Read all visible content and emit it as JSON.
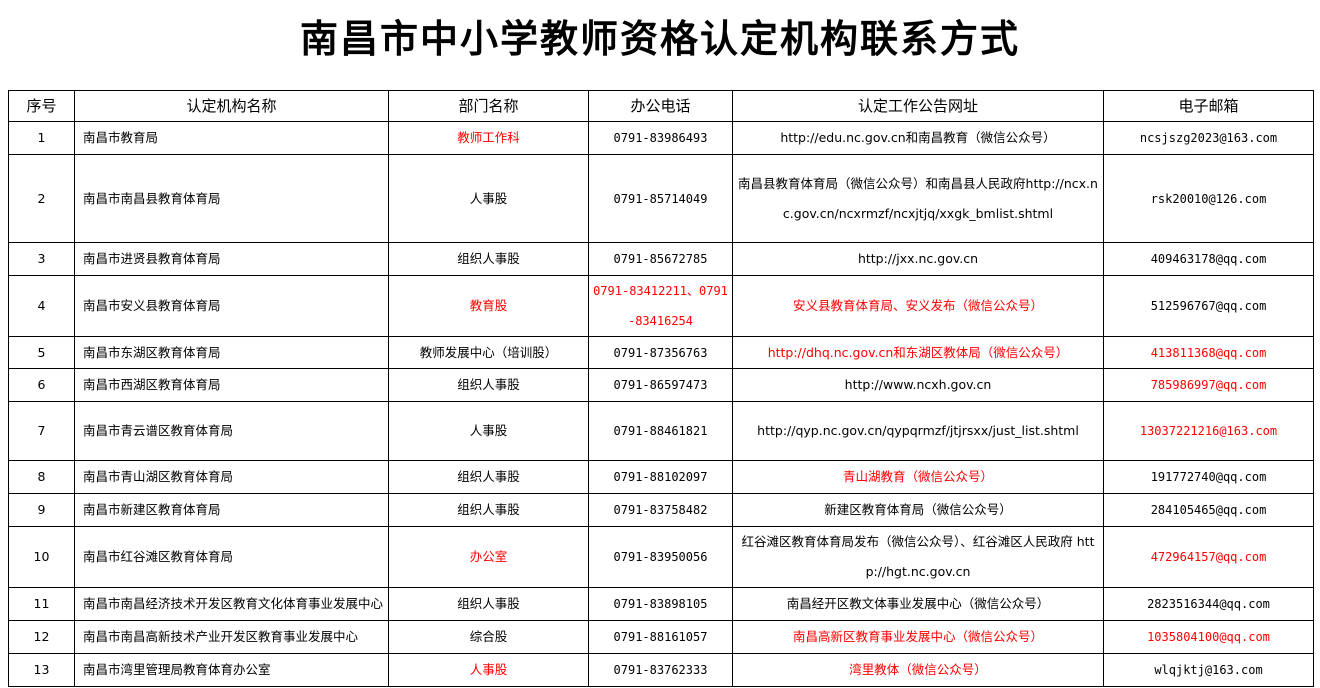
{
  "title": "南昌市中小学教师资格认定机构联系方式",
  "colors": {
    "highlight": "#ff0000",
    "text": "#000000"
  },
  "columns": [
    "序号",
    "认定机构名称",
    "部门名称",
    "办公电话",
    "认定工作公告网址",
    "电子邮箱"
  ],
  "rows": [
    {
      "no": "1",
      "name": "南昌市教育局",
      "dept": "教师工作科",
      "phone": "0791-83986493",
      "url": "http://edu.nc.gov.cn和南昌教育（微信公众号）",
      "email": "ncsjszg2023@163.com",
      "highlight": [
        "dept"
      ],
      "h": 33
    },
    {
      "no": "2",
      "name": "南昌市南昌县教育体育局",
      "dept": "人事股",
      "phone": "0791-85714049",
      "url": "南昌县教育体育局（微信公众号）和南昌县人民政府http://ncx.nc.gov.cn/ncxrmzf/ncxjtjq/xxgk_bmlist.shtml",
      "email": "rsk20010@126.com",
      "highlight": [],
      "h": 88
    },
    {
      "no": "3",
      "name": "南昌市进贤县教育体育局",
      "dept": "组织人事股",
      "phone": "0791-85672785",
      "url": "http://jxx.nc.gov.cn",
      "email": "409463178@qq.com",
      "highlight": [],
      "h": 33
    },
    {
      "no": "4",
      "name": "南昌市安义县教育体育局",
      "dept": "教育股",
      "phone": "0791-83412211、0791-83416254",
      "url": "安义县教育体育局、安义发布（微信公众号）",
      "email": "512596767@qq.com",
      "highlight": [
        "dept",
        "phone",
        "url"
      ],
      "h": 59
    },
    {
      "no": "5",
      "name": "南昌市东湖区教育体育局",
      "dept": "教师发展中心（培训股）",
      "phone": "0791-87356763",
      "url": "http://dhq.nc.gov.cn和东湖区教体局（微信公众号）",
      "email": "413811368@qq.com",
      "highlight": [
        "url",
        "email"
      ],
      "h": 32
    },
    {
      "no": "6",
      "name": "南昌市西湖区教育体育局",
      "dept": "组织人事股",
      "phone": "0791-86597473",
      "url": "http://www.ncxh.gov.cn",
      "email": "785986997@qq.com",
      "highlight": [
        "email"
      ],
      "h": 33
    },
    {
      "no": "7",
      "name": "南昌市青云谱区教育体育局",
      "dept": "人事股",
      "phone": "0791-88461821",
      "url": "http://qyp.nc.gov.cn/qypqrmzf/jtjrsxx/just_list.shtml",
      "email": "13037221216@163.com",
      "highlight": [
        "email"
      ],
      "h": 59
    },
    {
      "no": "8",
      "name": "南昌市青山湖区教育体育局",
      "dept": "组织人事股",
      "phone": "0791-88102097",
      "url": "青山湖教育（微信公众号）",
      "email": "191772740@qq.com",
      "highlight": [
        "url"
      ],
      "h": 33
    },
    {
      "no": "9",
      "name": "南昌市新建区教育体育局",
      "dept": "组织人事股",
      "phone": "0791-83758482",
      "url": "新建区教育体育局（微信公众号）",
      "email": "284105465@qq.com",
      "highlight": [],
      "h": 33
    },
    {
      "no": "10",
      "name": "南昌市红谷滩区教育体育局",
      "dept": "办公室",
      "phone": "0791-83950056",
      "url": "红谷滩区教育体育局发布（微信公众号）、红谷滩区人民政府 http://hgt.nc.gov.cn",
      "email": "472964157@qq.com",
      "highlight": [
        "dept",
        "email"
      ],
      "h": 59
    },
    {
      "no": "11",
      "name": "南昌市南昌经济技术开发区教育文化体育事业发展中心",
      "dept": "组织人事股",
      "phone": "0791-83898105",
      "url": "南昌经开区教文体事业发展中心（微信公众号）",
      "email": "2823516344@qq.com",
      "highlight": [],
      "h": 33
    },
    {
      "no": "12",
      "name": "南昌市南昌高新技术产业开发区教育事业发展中心",
      "dept": "综合股",
      "phone": "0791-88161057",
      "url": "南昌高新区教育事业发展中心（微信公众号）",
      "email": "1035804100@qq.com",
      "highlight": [
        "url",
        "email"
      ],
      "h": 33
    },
    {
      "no": "13",
      "name": "南昌市湾里管理局教育体育办公室",
      "dept": "人事股",
      "phone": "0791-83762333",
      "url": "湾里教体（微信公众号）",
      "email": "wlqjktj@163.com",
      "highlight": [
        "dept",
        "url"
      ],
      "h": 33
    }
  ]
}
